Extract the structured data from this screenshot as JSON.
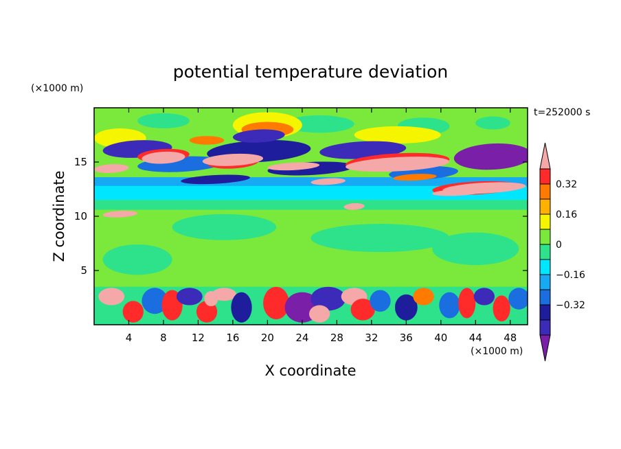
{
  "chart_data": {
    "type": "heatmap",
    "title": "potential temperature deviation",
    "time_label": "t=252000 s",
    "xlabel": "X coordinate",
    "ylabel": "Z coordinate",
    "x_unit": "(×1000 m)",
    "y_unit": "(×1000 m)",
    "xlim": [
      0,
      50
    ],
    "ylim": [
      0,
      20
    ],
    "x_ticks": [
      4,
      8,
      12,
      16,
      20,
      24,
      28,
      32,
      36,
      40,
      44,
      48
    ],
    "y_ticks": [
      5,
      10,
      15
    ],
    "colorbar": {
      "levels": [
        -0.4,
        -0.32,
        -0.24,
        -0.16,
        -0.08,
        0,
        0.08,
        0.16,
        0.24,
        0.32,
        0.4
      ],
      "labeled_levels": [
        0.32,
        0.16,
        0,
        -0.16,
        -0.32
      ],
      "tick_labels": [
        "0.32",
        "0.16",
        "0",
        "−0.16",
        "−0.32"
      ],
      "colors_low_to_high": [
        "#7a1fa8",
        "#3c2bb8",
        "#1e1e9c",
        "#1a6ee0",
        "#17a9f2",
        "#00e6ff",
        "#2de28a",
        "#7be83c",
        "#f5f500",
        "#ffb000",
        "#ff7a00",
        "#ff2a2a",
        "#f5a8a8"
      ],
      "extend": "both"
    },
    "field_bands": [
      {
        "z_range": [
          17,
          20
        ],
        "dominant": "#7be83c"
      },
      {
        "z_range": [
          13,
          17
        ],
        "dominant": "mixed strong"
      },
      {
        "z_range": [
          10,
          13
        ],
        "dominant": "#00e6ff"
      },
      {
        "z_range": [
          3.5,
          10
        ],
        "dominant": "#7be83c"
      },
      {
        "z_range": [
          0,
          3.5
        ],
        "dominant": "mixed strong"
      }
    ]
  }
}
